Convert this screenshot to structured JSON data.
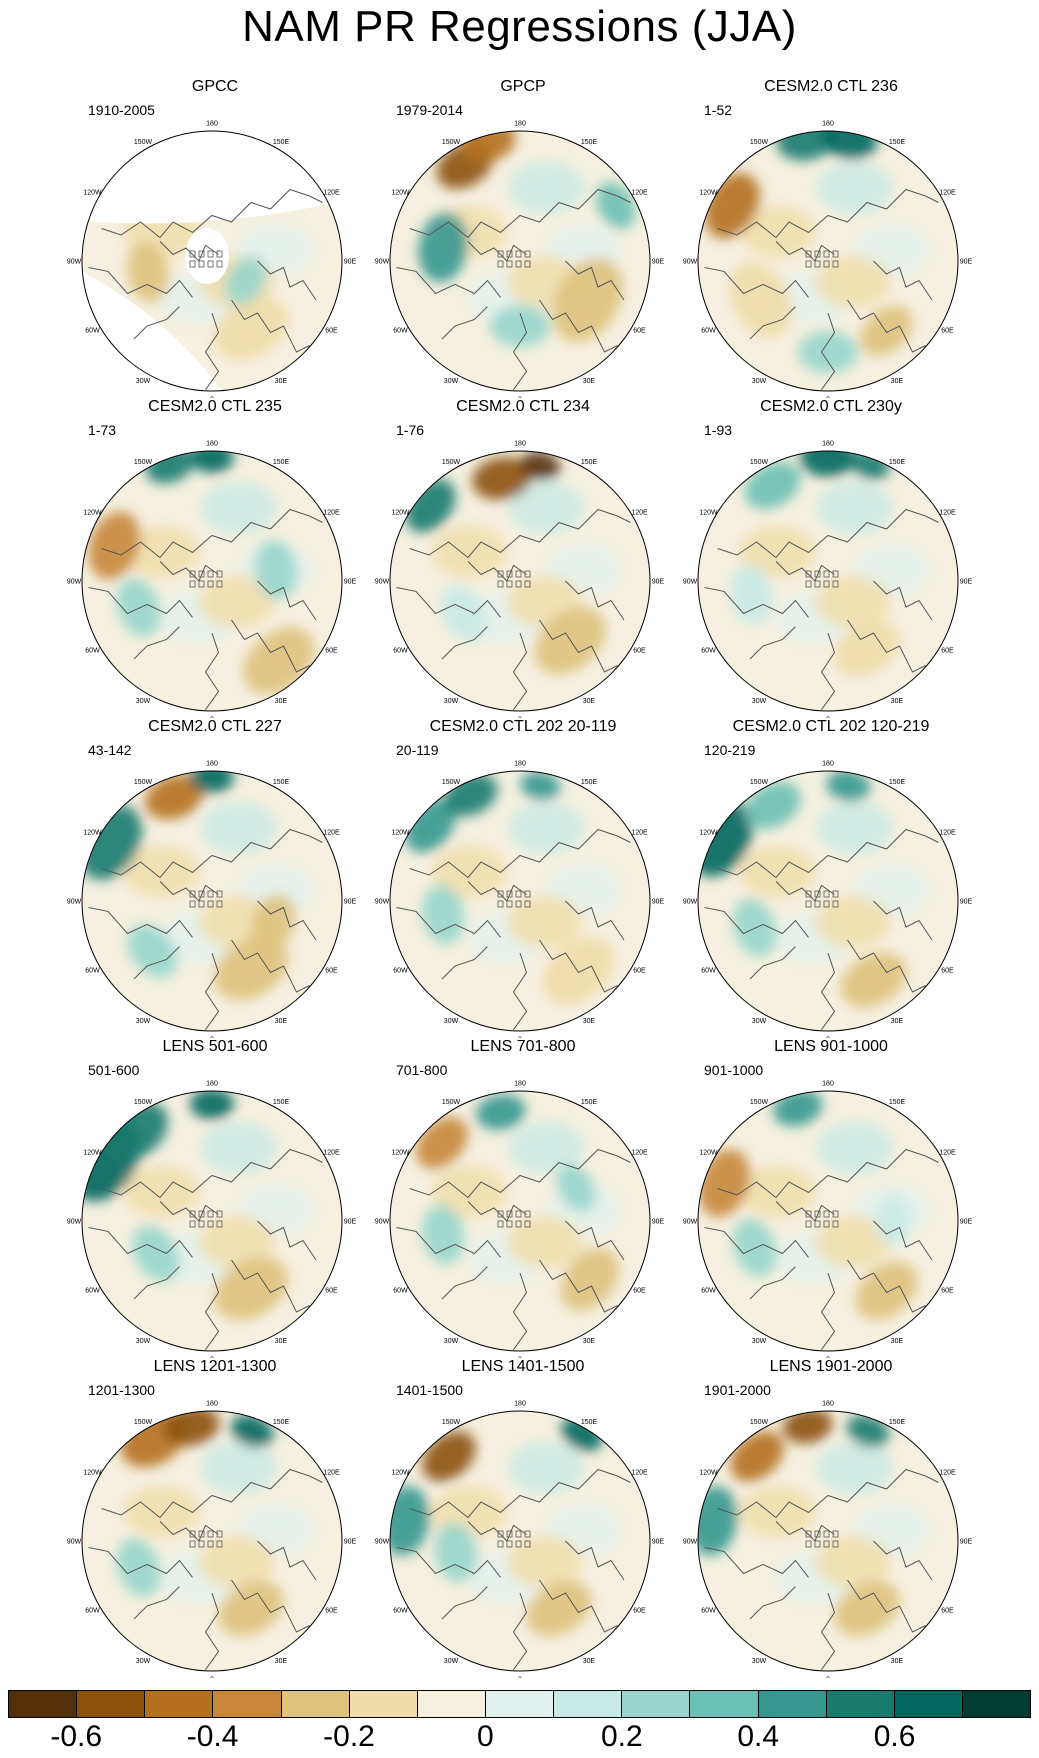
{
  "title": "NAM PR Regressions (JJA)",
  "longitude_labels": [
    "180",
    "150E",
    "120E",
    "90E",
    "60E",
    "30E",
    "0",
    "30W",
    "60W",
    "90W",
    "120W",
    "150W"
  ],
  "panels": [
    {
      "title": "GPCC",
      "period": "1910-2005"
    },
    {
      "title": "GPCP",
      "period": "1979-2014"
    },
    {
      "title": "CESM2.0 CTL 236",
      "period": "1-52"
    },
    {
      "title": "CESM2.0 CTL 235",
      "period": "1-73"
    },
    {
      "title": "CESM2.0 CTL 234",
      "period": "1-76"
    },
    {
      "title": "CESM2.0 CTL 230y",
      "period": "1-93"
    },
    {
      "title": "CESM2.0 CTL 227",
      "period": "43-142"
    },
    {
      "title": "CESM2.0 CTL 202 20-119",
      "period": "20-119"
    },
    {
      "title": "CESM2.0 CTL 202 120-219",
      "period": "120-219"
    },
    {
      "title": "LENS 501-600",
      "period": "501-600"
    },
    {
      "title": "LENS 701-800",
      "period": "701-800"
    },
    {
      "title": "LENS 901-1000",
      "period": "901-1000"
    },
    {
      "title": "LENS 1201-1300",
      "period": "1201-1300"
    },
    {
      "title": "LENS 1401-1500",
      "period": "1401-1500"
    },
    {
      "title": "LENS 1901-2000",
      "period": "1901-2000"
    }
  ],
  "colorbar": {
    "colors": [
      "#54300a",
      "#8c510a",
      "#b5701f",
      "#c8873a",
      "#dfc27d",
      "#f0dca8",
      "#f5f0e0",
      "#e3f1ee",
      "#c7eae5",
      "#98d6cc",
      "#6cc0b3",
      "#35978f",
      "#1a7a6e",
      "#01665e",
      "#003c30"
    ],
    "labels": [
      "-0.6",
      "-0.4",
      "-0.2",
      "0",
      "0.2",
      "0.4",
      "0.6"
    ]
  }
}
